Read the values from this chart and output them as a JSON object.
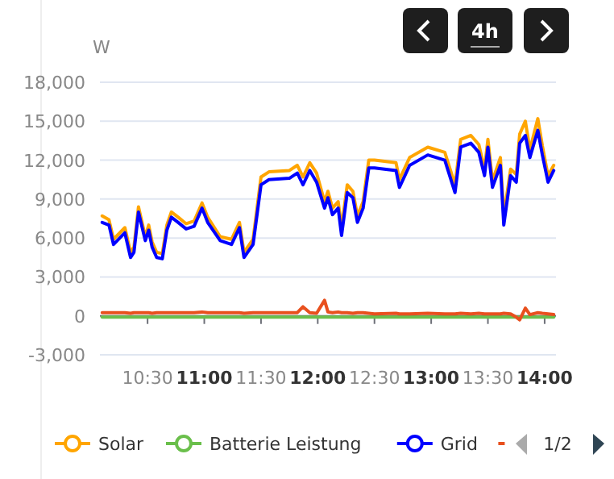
{
  "chart_data": {
    "type": "line",
    "ylabel": "W",
    "x": [
      10.1,
      10.16,
      10.2,
      10.3,
      10.35,
      10.38,
      10.42,
      10.48,
      10.51,
      10.54,
      10.58,
      10.63,
      10.67,
      10.71,
      10.77,
      10.84,
      10.91,
      10.98,
      11.03,
      11.14,
      11.24,
      11.31,
      11.35,
      11.43,
      11.5,
      11.57,
      11.75,
      11.82,
      11.87,
      11.93,
      11.99,
      12.06,
      12.09,
      12.13,
      12.18,
      12.21,
      12.26,
      12.31,
      12.35,
      12.4,
      12.45,
      12.5,
      12.69,
      12.72,
      12.81,
      12.97,
      13.12,
      13.21,
      13.26,
      13.35,
      13.42,
      13.47,
      13.5,
      13.54,
      13.61,
      13.64,
      13.7,
      13.75,
      13.78,
      13.83,
      13.87,
      13.94,
      13.98,
      14.03,
      14.08
    ],
    "series": [
      {
        "name": "Solar",
        "color": "#ffa500",
        "values": [
          7700,
          7400,
          5900,
          6800,
          4900,
          5300,
          8400,
          6100,
          7000,
          5700,
          4900,
          4800,
          7000,
          8000,
          7600,
          7100,
          7300,
          8700,
          7600,
          6100,
          5900,
          7200,
          4900,
          5900,
          10700,
          11100,
          11200,
          11600,
          10700,
          11800,
          11000,
          8800,
          9600,
          8300,
          8800,
          6800,
          10100,
          9600,
          7700,
          8800,
          12000,
          12000,
          11800,
          10500,
          12200,
          13000,
          12600,
          10100,
          13600,
          13900,
          13200,
          11300,
          13600,
          10400,
          12200,
          7700,
          11300,
          10900,
          14000,
          15000,
          12800,
          15200,
          13100,
          10800,
          11600
        ]
      },
      {
        "name": "Batterie Leistung",
        "color": "#6abf4b",
        "values": [
          -100,
          -100,
          -100,
          -100,
          -100,
          -100,
          -100,
          -100,
          -100,
          -100,
          -100,
          -100,
          -100,
          -100,
          -100,
          -100,
          -100,
          -100,
          -100,
          -100,
          -100,
          -100,
          -100,
          -100,
          -100,
          -100,
          -100,
          -100,
          -100,
          -100,
          -100,
          -100,
          -100,
          -100,
          -100,
          -100,
          -100,
          -100,
          -100,
          -100,
          -100,
          -100,
          -100,
          -100,
          -100,
          -100,
          -100,
          -100,
          -100,
          -100,
          -100,
          -100,
          -100,
          -100,
          -100,
          -100,
          -100,
          -100,
          -100,
          -100,
          -100,
          -100,
          -100,
          -100,
          -100
        ]
      },
      {
        "name": "Grid",
        "color": "#0000ff",
        "values": [
          7200,
          7000,
          5500,
          6400,
          4500,
          4900,
          8000,
          5800,
          6600,
          5300,
          4500,
          4400,
          6600,
          7600,
          7200,
          6700,
          6900,
          8300,
          7200,
          5800,
          5500,
          6800,
          4500,
          5500,
          10100,
          10500,
          10600,
          11000,
          10100,
          11200,
          10300,
          8300,
          9100,
          7800,
          8300,
          6200,
          9500,
          9100,
          7200,
          8300,
          11400,
          11400,
          11200,
          9900,
          11600,
          12400,
          12000,
          9500,
          13000,
          13300,
          12600,
          10800,
          13000,
          9900,
          11600,
          7000,
          10800,
          10300,
          13300,
          13900,
          12200,
          14300,
          12400,
          10300,
          11200
        ]
      },
      {
        "color": "#e8501e",
        "values": [
          250,
          250,
          250,
          250,
          200,
          250,
          250,
          250,
          250,
          200,
          250,
          250,
          250,
          250,
          250,
          250,
          250,
          300,
          250,
          250,
          250,
          250,
          200,
          250,
          250,
          250,
          250,
          250,
          700,
          250,
          200,
          1200,
          300,
          250,
          300,
          250,
          250,
          200,
          250,
          250,
          200,
          150,
          200,
          150,
          150,
          200,
          150,
          150,
          200,
          150,
          200,
          150,
          150,
          150,
          150,
          200,
          150,
          -100,
          -300,
          600,
          100,
          250,
          200,
          150,
          100
        ]
      }
    ],
    "xlim": [
      10.08,
      14.1
    ],
    "ylim": [
      -3000,
      18000
    ],
    "xticks": [
      {
        "value": 10.5,
        "label": "10:30"
      },
      {
        "value": 11,
        "label": "11:00"
      },
      {
        "value": 11.5,
        "label": "11:30"
      },
      {
        "value": 12,
        "label": "12:00"
      },
      {
        "value": 12.5,
        "label": "12:30"
      },
      {
        "value": 13,
        "label": "13:00"
      },
      {
        "value": 13.5,
        "label": "13:30"
      },
      {
        "value": 14,
        "label": "14:00"
      }
    ],
    "yticks": [
      {
        "value": -3000,
        "label": "-3,000"
      },
      0,
      {
        "value": 3000,
        "label": "3,000"
      },
      {
        "value": 6000,
        "label": "6,000"
      },
      {
        "value": 9000,
        "label": "9,000"
      },
      {
        "value": 12000,
        "label": "12,000"
      },
      {
        "value": 15000,
        "label": "15,000"
      },
      {
        "value": 18000,
        "label": "18,000"
      }
    ],
    "grid": "y",
    "legend": "bottom",
    "marker": "none",
    "line_style": "solid",
    "annotations": [
      "4h",
      "1/2"
    ]
  }
}
